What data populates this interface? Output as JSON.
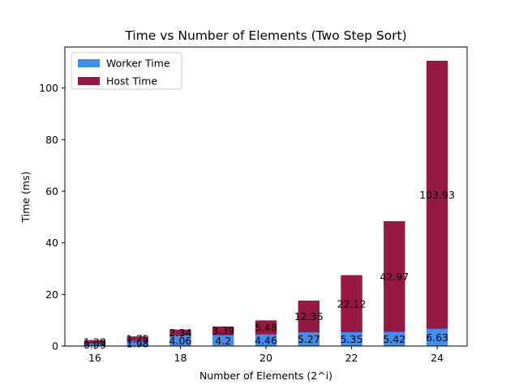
{
  "chart_data": {
    "type": "bar",
    "stacked": true,
    "title": "Time vs Number of Elements (Two Step Sort)",
    "xlabel": "Number of Elements (2^i)",
    "ylabel": "Time (ms)",
    "x": [
      16,
      17,
      18,
      19,
      20,
      21,
      22,
      23,
      24
    ],
    "xticks": [
      16,
      18,
      20,
      22,
      24
    ],
    "xlim": [
      15.3,
      24.7
    ],
    "ylim": [
      0,
      115.9
    ],
    "yticks": [
      0,
      20,
      40,
      60,
      80,
      100
    ],
    "grid": false,
    "legend_position": "upper-left",
    "series": [
      {
        "name": "Worker Time",
        "color": "#3f8ef2",
        "values": [
          0.93,
          1.98,
          4.06,
          4.2,
          4.46,
          5.27,
          5.35,
          5.42,
          6.63
        ],
        "labels": [
          "0.93",
          "1.98",
          "4.06",
          "4.2",
          "4.46",
          "5.27",
          "5.35",
          "5.42",
          "6.63"
        ]
      },
      {
        "name": "Host Time",
        "color": "#951942",
        "values": [
          1.38,
          1.75,
          2.34,
          3.39,
          5.48,
          12.35,
          22.12,
          42.97,
          103.93
        ],
        "labels": [
          "1.38",
          "1.75",
          "2.34",
          "3.39",
          "5.48",
          "12.35",
          "22.12",
          "42.97",
          "103.93"
        ]
      }
    ]
  }
}
